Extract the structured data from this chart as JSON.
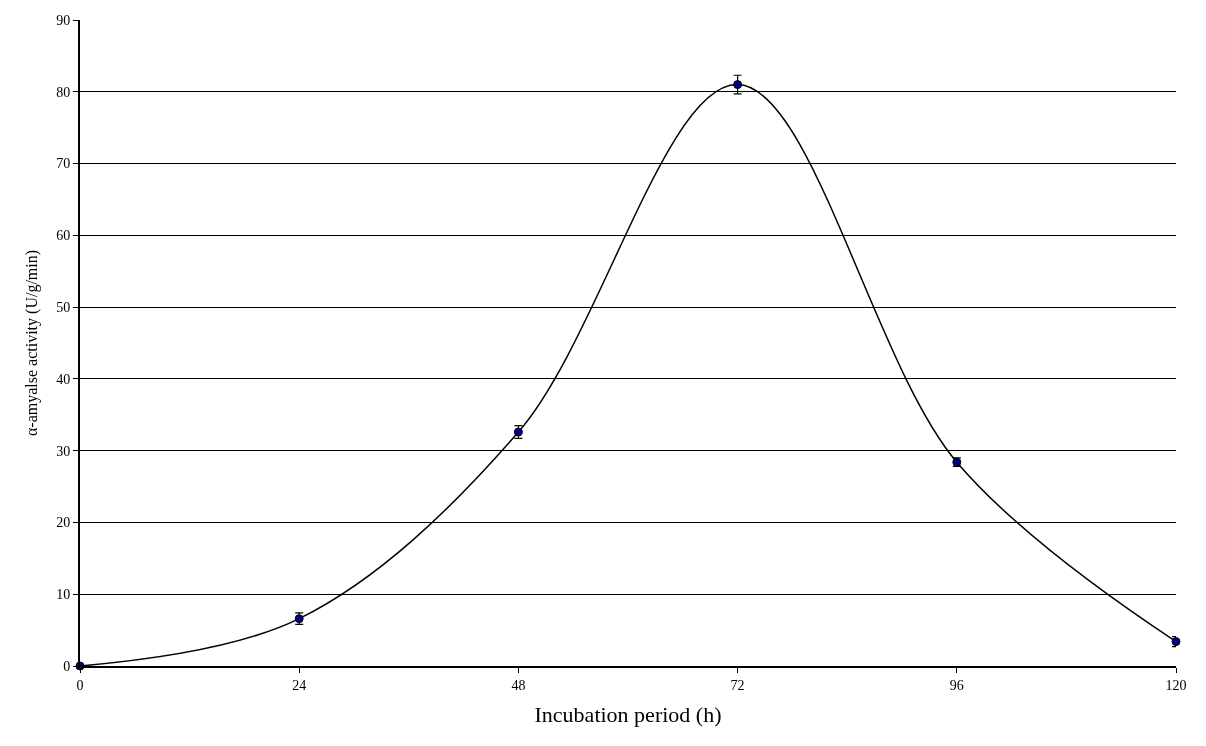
{
  "chart_data": {
    "type": "line",
    "xlabel": "Incubation period (h)",
    "ylabel": "α-amyalse activity (U/g/min)",
    "x": [
      0,
      24,
      48,
      72,
      96,
      120
    ],
    "series": [
      {
        "color": "#000080",
        "values": [
          0,
          6.6,
          32.6,
          81,
          28.4,
          3.4
        ],
        "errors": [
          null,
          0.8,
          0.9,
          1.3,
          0.6,
          0.7
        ]
      }
    ],
    "xlim": [
      0,
      120
    ],
    "xticks": [
      0,
      24,
      48,
      72,
      96,
      120
    ],
    "ylim": [
      0,
      90
    ],
    "yticks": [
      0,
      10,
      20,
      30,
      40,
      50,
      60,
      70,
      80,
      90
    ],
    "grid": "y",
    "marker": "circle",
    "line_style": "solid"
  }
}
